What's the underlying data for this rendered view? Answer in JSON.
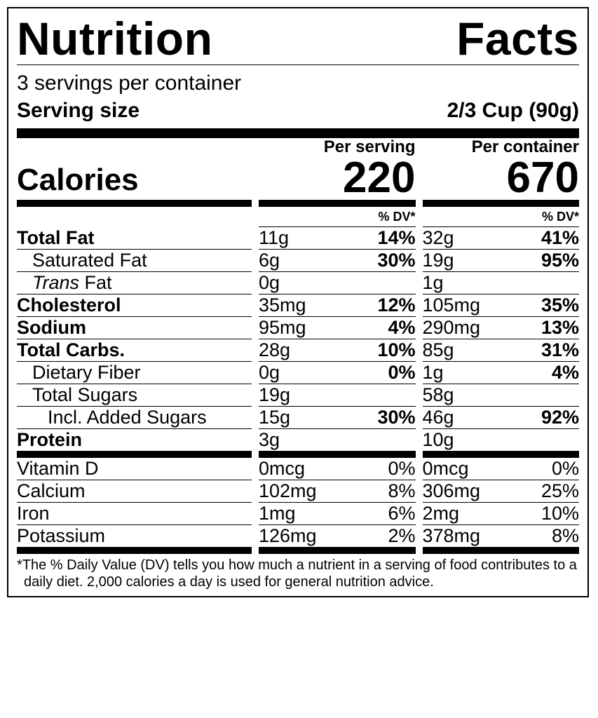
{
  "title": "Nutrition Facts",
  "servings_per_container": "3 servings per container",
  "serving_size_label": "Serving size",
  "serving_size_value": "2/3 Cup (90g)",
  "calories_label": "Calories",
  "per_serving_label": "Per serving",
  "per_container_label": "Per container",
  "calories_per_serving": "220",
  "calories_per_container": "670",
  "dv_header": "% DV*",
  "nutrients_main": [
    {
      "name": "Total Fat",
      "bold": true,
      "indent": 0,
      "serv_amt": "11g",
      "serv_dv": "14%",
      "cont_amt": "32g",
      "cont_dv": "41%"
    },
    {
      "name": "Saturated Fat",
      "bold": false,
      "indent": 1,
      "serv_amt": "6g",
      "serv_dv": "30%",
      "cont_amt": "19g",
      "cont_dv": "95%"
    },
    {
      "name_html": "<span class='italic'>Trans</span> Fat",
      "bold": false,
      "indent": 1,
      "serv_amt": "0g",
      "serv_dv": "",
      "cont_amt": "1g",
      "cont_dv": ""
    },
    {
      "name": "Cholesterol",
      "bold": true,
      "indent": 0,
      "serv_amt": "35mg",
      "serv_dv": "12%",
      "cont_amt": "105mg",
      "cont_dv": "35%"
    },
    {
      "name": "Sodium",
      "bold": true,
      "indent": 0,
      "serv_amt": "95mg",
      "serv_dv": "4%",
      "cont_amt": "290mg",
      "cont_dv": "13%"
    },
    {
      "name": "Total Carbs.",
      "bold": true,
      "indent": 0,
      "serv_amt": "28g",
      "serv_dv": "10%",
      "cont_amt": "85g",
      "cont_dv": "31%"
    },
    {
      "name": "Dietary Fiber",
      "bold": false,
      "indent": 1,
      "serv_amt": "0g",
      "serv_dv": "0%",
      "cont_amt": "1g",
      "cont_dv": "4%"
    },
    {
      "name": "Total Sugars",
      "bold": false,
      "indent": 1,
      "serv_amt": "19g",
      "serv_dv": "",
      "cont_amt": "58g",
      "cont_dv": ""
    },
    {
      "name": "Incl. Added Sugars",
      "bold": false,
      "indent": 2,
      "serv_amt": "15g",
      "serv_dv": "30%",
      "cont_amt": "46g",
      "cont_dv": "92%"
    },
    {
      "name": "Protein",
      "bold": true,
      "indent": 0,
      "serv_amt": "3g",
      "serv_dv": "",
      "cont_amt": "10g",
      "cont_dv": "",
      "noline": true
    }
  ],
  "nutrients_micro": [
    {
      "name": "Vitamin D",
      "serv_amt": "0mcg",
      "serv_dv": "0%",
      "cont_amt": "0mcg",
      "cont_dv": "0%"
    },
    {
      "name": "Calcium",
      "serv_amt": "102mg",
      "serv_dv": "8%",
      "cont_amt": "306mg",
      "cont_dv": "25%"
    },
    {
      "name": "Iron",
      "serv_amt": "1mg",
      "serv_dv": "6%",
      "cont_amt": "2mg",
      "cont_dv": "10%"
    },
    {
      "name": "Potassium",
      "serv_amt": "126mg",
      "serv_dv": "2%",
      "cont_amt": "378mg",
      "cont_dv": "8%",
      "noline": true
    }
  ],
  "footnote": "*The % Daily Value (DV) tells you how much a nutrient in a serving of food contributes to a daily diet. 2,000 calories a day is used for general nutrition advice.",
  "colors": {
    "text": "#000000",
    "background": "#ffffff",
    "rule": "#000000"
  }
}
